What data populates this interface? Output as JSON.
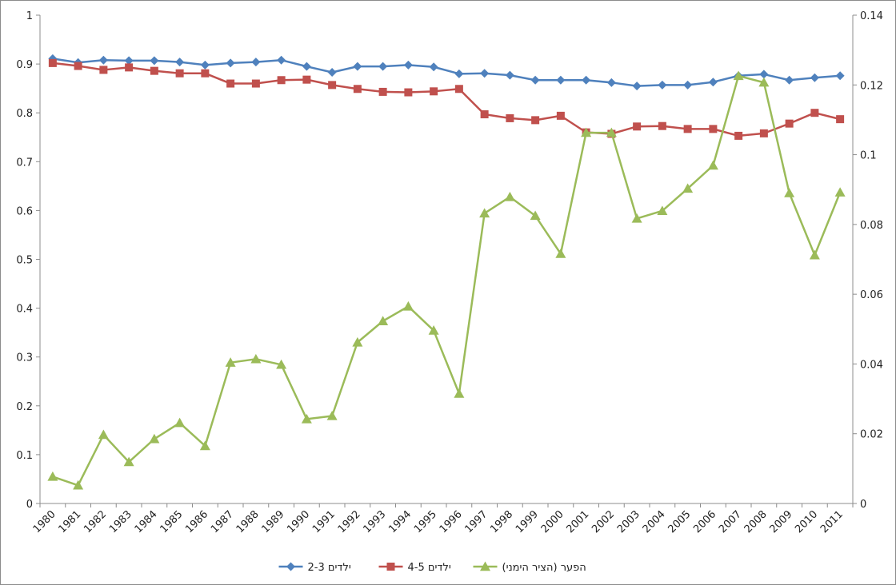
{
  "chart_data": {
    "type": "line",
    "title": "",
    "xlabel": "",
    "ylabel": "",
    "x": [
      "1980",
      "1981",
      "1982",
      "1983",
      "1984",
      "1985",
      "1986",
      "1987",
      "1988",
      "1989",
      "1990",
      "1991",
      "1992",
      "1993",
      "1994",
      "1995",
      "1996",
      "1997",
      "1998",
      "1999",
      "2000",
      "2001",
      "2002",
      "2003",
      "2004",
      "2005",
      "2006",
      "2007",
      "2008",
      "2009",
      "2010",
      "2011"
    ],
    "y_left": {
      "min": 0,
      "max": 1,
      "step": 0.1,
      "ticks": [
        "0",
        "0.1",
        "0.2",
        "0.3",
        "0.4",
        "0.5",
        "0.6",
        "0.7",
        "0.8",
        "0.9",
        "1"
      ]
    },
    "y_right": {
      "min": 0,
      "max": 0.14,
      "step": 0.02,
      "ticks": [
        "0",
        "0.02",
        "0.04",
        "0.06",
        "0.08",
        "0.1",
        "0.12",
        "0.14"
      ]
    },
    "grid": false,
    "legend_position": "bottom",
    "series": [
      {
        "name": "2-3 ילדים",
        "axis": "left",
        "marker": "diamond",
        "color": "#4f81bd",
        "values": [
          0.911,
          0.903,
          0.908,
          0.907,
          0.907,
          0.904,
          0.898,
          0.902,
          0.904,
          0.908,
          0.895,
          0.883,
          0.895,
          0.895,
          0.898,
          0.894,
          0.88,
          0.881,
          0.877,
          0.867,
          0.867,
          0.867,
          0.862,
          0.855,
          0.857,
          0.857,
          0.863,
          0.876,
          0.879,
          0.867,
          0.872,
          0.876
        ]
      },
      {
        "name": "4-5 ילדים",
        "axis": "left",
        "marker": "square",
        "color": "#c0504d",
        "values": [
          0.902,
          0.896,
          0.888,
          0.893,
          0.886,
          0.881,
          0.881,
          0.86,
          0.86,
          0.867,
          0.868,
          0.857,
          0.849,
          0.843,
          0.842,
          0.844,
          0.849,
          0.797,
          0.789,
          0.785,
          0.794,
          0.76,
          0.757,
          0.772,
          0.773,
          0.767,
          0.767,
          0.753,
          0.758,
          0.778,
          0.8,
          0.787
        ]
      },
      {
        "name": "הפער (הציר הימני)",
        "axis": "right",
        "marker": "triangle",
        "color": "#9bbb59",
        "values": [
          0.0077,
          0.0052,
          0.0197,
          0.0119,
          0.0185,
          0.0231,
          0.0165,
          0.0404,
          0.0414,
          0.0398,
          0.0242,
          0.0251,
          0.0462,
          0.0523,
          0.0565,
          0.0496,
          0.0315,
          0.0832,
          0.0879,
          0.0825,
          0.0716,
          0.1063,
          0.1063,
          0.0817,
          0.0839,
          0.0903,
          0.0969,
          0.1226,
          0.1207,
          0.089,
          0.0712,
          0.0892
        ]
      }
    ]
  }
}
